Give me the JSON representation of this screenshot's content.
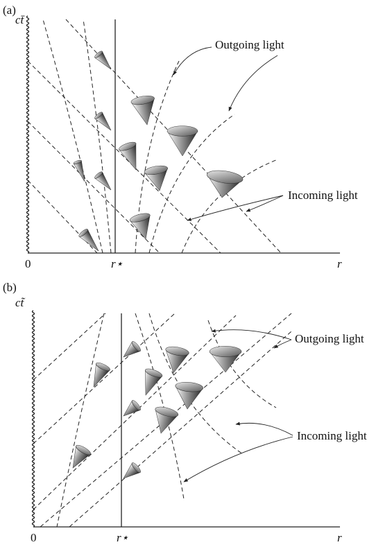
{
  "panels": [
    {
      "label": "(a)",
      "y_axis": "ct̄",
      "origin": "0",
      "marker": "r⋆",
      "x_axis": "r",
      "annotations": [
        "Outgoing light",
        "Incoming light"
      ]
    },
    {
      "label": "(b)",
      "y_axis": "ct̃",
      "origin": "0",
      "marker": "r⋆",
      "x_axis": "r",
      "annotations": [
        "Outgoing light",
        "Incoming light"
      ]
    }
  ]
}
